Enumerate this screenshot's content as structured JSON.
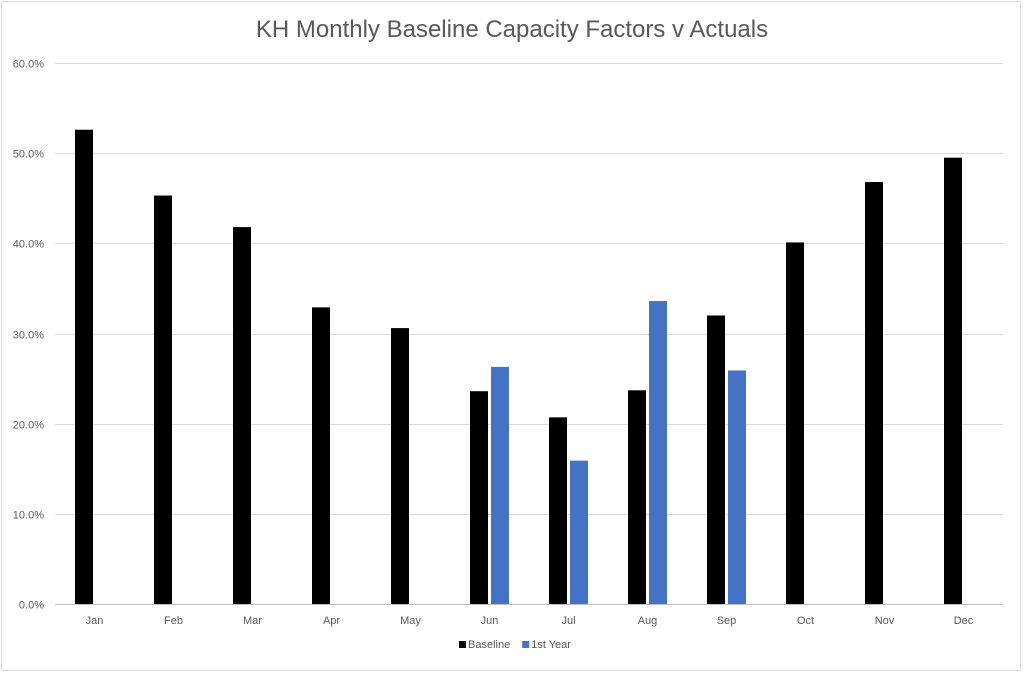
{
  "chart_data": {
    "type": "bar",
    "title": "KH Monthly Baseline Capacity Factors v Actuals",
    "xlabel": "",
    "ylabel": "",
    "categories": [
      "Jan",
      "Feb",
      "Mar",
      "Apr",
      "May",
      "Jun",
      "Jul",
      "Aug",
      "Sep",
      "Oct",
      "Nov",
      "Dec"
    ],
    "series": [
      {
        "name": "Baseline",
        "color": "#000000",
        "values": [
          52.6,
          45.3,
          41.8,
          32.9,
          30.6,
          23.6,
          20.7,
          23.7,
          32.0,
          40.1,
          46.8,
          49.5
        ]
      },
      {
        "name": "1st Year",
        "color": "#4472c4",
        "values": [
          null,
          null,
          null,
          null,
          null,
          26.3,
          15.9,
          33.6,
          25.9,
          null,
          null,
          null
        ]
      }
    ],
    "ylim": [
      0,
      60
    ],
    "yticks": [
      0,
      10,
      20,
      30,
      40,
      50,
      60
    ],
    "ytick_labels": [
      "0.0%",
      "10.0%",
      "20.0%",
      "30.0%",
      "40.0%",
      "50.0%",
      "60.0%"
    ],
    "grid": true,
    "legend_position": "bottom"
  }
}
